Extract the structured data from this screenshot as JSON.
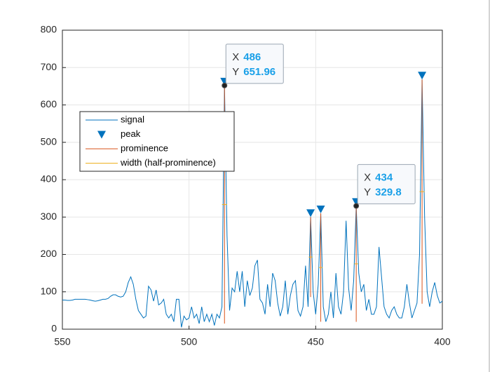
{
  "chart_data": {
    "type": "findpeaks",
    "xlim": [
      400,
      550
    ],
    "xreverse": true,
    "xticks": [
      550,
      500,
      450,
      400
    ],
    "ylim": [
      0,
      800
    ],
    "yticks": [
      0,
      100,
      200,
      300,
      400,
      500,
      600,
      700,
      800
    ],
    "grid": true,
    "series": [
      {
        "name": "signal",
        "color": "#0072BD",
        "x": [
          550,
          549,
          548,
          547,
          546,
          545,
          544,
          543,
          542,
          541,
          540,
          539,
          538,
          537,
          536,
          535,
          534,
          533,
          532,
          531,
          530,
          529,
          528,
          527,
          526,
          525,
          524,
          523,
          522,
          521,
          520,
          519,
          518,
          517,
          516,
          515,
          514,
          513,
          512,
          511,
          510,
          509,
          508,
          507,
          506,
          505,
          504,
          503,
          502,
          501,
          500,
          499,
          498,
          497,
          496,
          495,
          494,
          493,
          492,
          491,
          490,
          489,
          488,
          487,
          486,
          485,
          484,
          483,
          482,
          481,
          480,
          479,
          478,
          477,
          476,
          475,
          474,
          473,
          472,
          471,
          470,
          469,
          468,
          467,
          466,
          465,
          464,
          463,
          462,
          461,
          460,
          459,
          458,
          457,
          456,
          455,
          454,
          453,
          452,
          451,
          450,
          449,
          448,
          447,
          446,
          445,
          444,
          443,
          442,
          441,
          440,
          439,
          438,
          437,
          436,
          435,
          434,
          433,
          432,
          431,
          430,
          429,
          428,
          427,
          426,
          425,
          424,
          423,
          422,
          421,
          420,
          419,
          418,
          417,
          416,
          415,
          414,
          413,
          412,
          411,
          410,
          409,
          408,
          407,
          406,
          405,
          404,
          403,
          402,
          401,
          400
        ],
        "values": [
          78,
          78,
          77,
          77,
          78,
          80,
          80,
          80,
          80,
          80,
          79,
          78,
          76,
          75,
          76,
          78,
          80,
          80,
          82,
          88,
          92,
          92,
          88,
          86,
          88,
          100,
          125,
          140,
          120,
          80,
          50,
          40,
          30,
          35,
          115,
          105,
          75,
          105,
          65,
          70,
          80,
          40,
          30,
          40,
          20,
          80,
          80,
          5,
          35,
          25,
          30,
          60,
          30,
          40,
          15,
          60,
          20,
          40,
          20,
          40,
          10,
          40,
          30,
          60,
          651.96,
          250,
          50,
          110,
          100,
          155,
          100,
          155,
          60,
          130,
          90,
          110,
          170,
          185,
          80,
          70,
          40,
          120,
          60,
          150,
          130,
          70,
          35,
          60,
          130,
          40,
          90,
          120,
          130,
          50,
          35,
          60,
          170,
          60,
          300,
          100,
          40,
          120,
          310,
          60,
          20,
          40,
          100,
          30,
          150,
          60,
          40,
          100,
          290,
          110,
          50,
          130,
          329.8,
          150,
          100,
          120,
          50,
          80,
          40,
          40,
          60,
          220,
          140,
          60,
          40,
          30,
          50,
          60,
          40,
          30,
          30,
          60,
          120,
          70,
          30,
          50,
          70,
          200,
          668,
          300,
          100,
          60,
          100,
          125,
          90,
          70,
          75
        ]
      },
      {
        "name": "peak",
        "color": "#0072BD",
        "x": [
          486,
          452,
          448,
          434,
          408
        ],
        "values": [
          651.96,
          300,
          310,
          329.8,
          668
        ],
        "prominences": [
          637,
          214,
          290,
          310,
          600
        ],
        "widths": [
          2,
          1.5,
          1.5,
          1.5,
          2
        ]
      },
      {
        "name": "prominence",
        "color": "#D95319"
      },
      {
        "name": "width (half-prominence)",
        "color": "#EDB120"
      }
    ],
    "datatips": [
      {
        "x_label": "X",
        "x": 486,
        "y_label": "Y",
        "y": 651.96
      },
      {
        "x_label": "X",
        "x": 434,
        "y_label": "Y",
        "y": 329.8
      }
    ]
  }
}
